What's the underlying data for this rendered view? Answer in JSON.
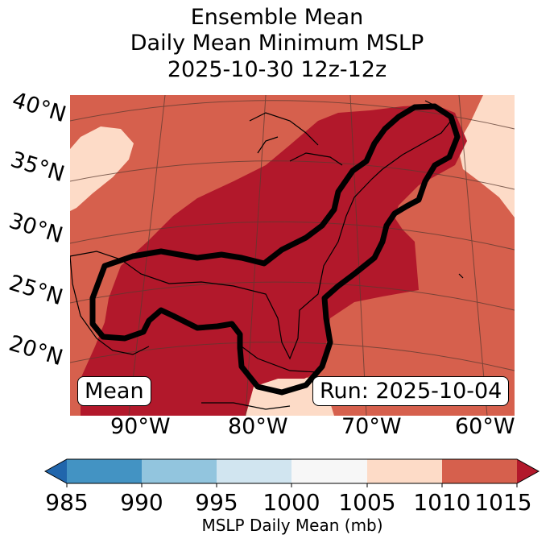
{
  "title": {
    "line1": "Ensemble Mean",
    "line2": "Daily Mean Minimum MSLP",
    "line3": "2025-10-30 12z-12z"
  },
  "map": {
    "lat_labels": [
      "40°N",
      "35°N",
      "30°N",
      "25°N",
      "20°N"
    ],
    "lon_labels": [
      "90°W",
      "80°W",
      "70°W",
      "60°W"
    ],
    "mean_box": "Mean",
    "run_box": "Run: 2025-10-04",
    "colors": {
      "c1010_1015": "#d6604d",
      "c1005_1010": "#fddbc7",
      "c_above_1015": "#b2182b",
      "contour": "#000000"
    }
  },
  "colorbar": {
    "ticks": [
      "985",
      "990",
      "995",
      "1000",
      "1005",
      "1010",
      "1015"
    ],
    "label": "MSLP Daily Mean (mb)",
    "colors": [
      "#2166ac",
      "#4393c3",
      "#92c5de",
      "#d1e5f0",
      "#f7f7f7",
      "#fddbc7",
      "#d6604d",
      "#b2182b"
    ]
  }
}
